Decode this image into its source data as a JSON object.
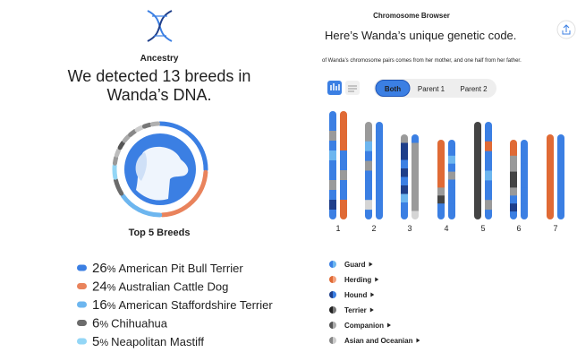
{
  "ancestry": {
    "label": "Ancestry",
    "headline_lines": [
      "We detected 13 breeds in",
      "Wanda’s DNA."
    ],
    "top_title": "Top 5 Breeds",
    "breeds": [
      {
        "value": 26,
        "unit": "%",
        "name": "American Pit Bull Terrier",
        "color": "#3b7fe3"
      },
      {
        "value": 24,
        "unit": "%",
        "name": "Australian Cattle Dog",
        "color": "#e9835c"
      },
      {
        "value": 16,
        "unit": "%",
        "name": "American Staffordshire Terrier",
        "color": "#6db6ef"
      },
      {
        "value": 6,
        "unit": "%",
        "name": "Chihuahua",
        "color": "#6b6b6b"
      },
      {
        "value": 5,
        "unit": "%",
        "name": "Neapolitan Mastiff",
        "color": "#93d6f6"
      }
    ]
  },
  "browser": {
    "title": "Chromosome Browser",
    "headline": "Here’s Wanda’s unique genetic code.",
    "subtitle": "of Wanda’s chromosome pairs comes from her mother, and one half from her father.",
    "buttons": [
      "Both",
      "Parent 1",
      "Parent 2"
    ],
    "chromosomes": [
      "1",
      "2",
      "3",
      "4",
      "5",
      "6",
      "7"
    ],
    "legend": [
      "Guard",
      "Herding",
      "Hound",
      "Terrier",
      "Companion",
      "Asian and Oceanian"
    ]
  }
}
